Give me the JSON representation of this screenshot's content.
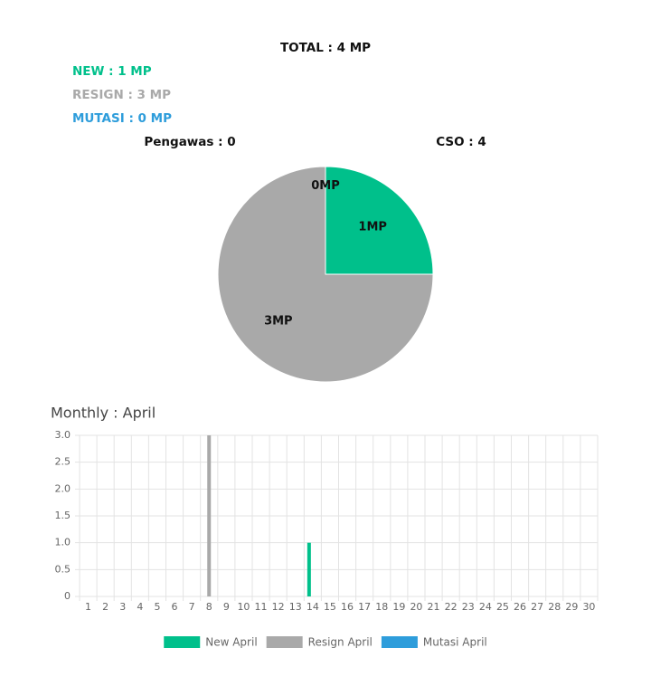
{
  "header": {
    "total": "TOTAL : 4 MP",
    "new": "NEW : 1 MP",
    "resign": "RESIGN : 3 MP",
    "mutasi": "MUTASI : 0 MP",
    "pengawas": "Pengawas : 0",
    "cso": "CSO : 4"
  },
  "chart_data": [
    {
      "type": "pie",
      "values": [
        1,
        3,
        0
      ],
      "value_labels": [
        "1MP",
        "3MP",
        "0MP"
      ],
      "colors": [
        "#00c08b",
        "#a9a9a9",
        "#2e9ddb"
      ]
    },
    {
      "type": "bar",
      "title": "Monthly : April",
      "categories": [
        1,
        2,
        3,
        4,
        5,
        6,
        7,
        8,
        9,
        10,
        11,
        12,
        13,
        14,
        15,
        16,
        17,
        18,
        19,
        20,
        21,
        22,
        23,
        24,
        25,
        26,
        27,
        28,
        29,
        30
      ],
      "series": [
        {
          "name": "New April",
          "color": "#00c08b",
          "values": [
            0,
            0,
            0,
            0,
            0,
            0,
            0,
            0,
            0,
            0,
            0,
            0,
            0,
            1,
            0,
            0,
            0,
            0,
            0,
            0,
            0,
            0,
            0,
            0,
            0,
            0,
            0,
            0,
            0,
            0
          ]
        },
        {
          "name": "Resign April",
          "color": "#a9a9a9",
          "values": [
            0,
            0,
            0,
            0,
            0,
            0,
            0,
            3,
            0,
            0,
            0,
            0,
            0,
            0,
            0,
            0,
            0,
            0,
            0,
            0,
            0,
            0,
            0,
            0,
            0,
            0,
            0,
            0,
            0,
            0
          ]
        },
        {
          "name": "Mutasi April",
          "color": "#2e9ddb",
          "values": [
            0,
            0,
            0,
            0,
            0,
            0,
            0,
            0,
            0,
            0,
            0,
            0,
            0,
            0,
            0,
            0,
            0,
            0,
            0,
            0,
            0,
            0,
            0,
            0,
            0,
            0,
            0,
            0,
            0,
            0
          ]
        }
      ],
      "ylim": [
        0,
        3
      ],
      "yticks": [
        0,
        0.5,
        {
          "value": 1,
          "label": "1.0"
        },
        1.5,
        {
          "value": 2,
          "label": "2.0"
        },
        2.5,
        {
          "value": 3,
          "label": "3.0"
        }
      ],
      "grid": true,
      "legend": "bottom"
    }
  ]
}
